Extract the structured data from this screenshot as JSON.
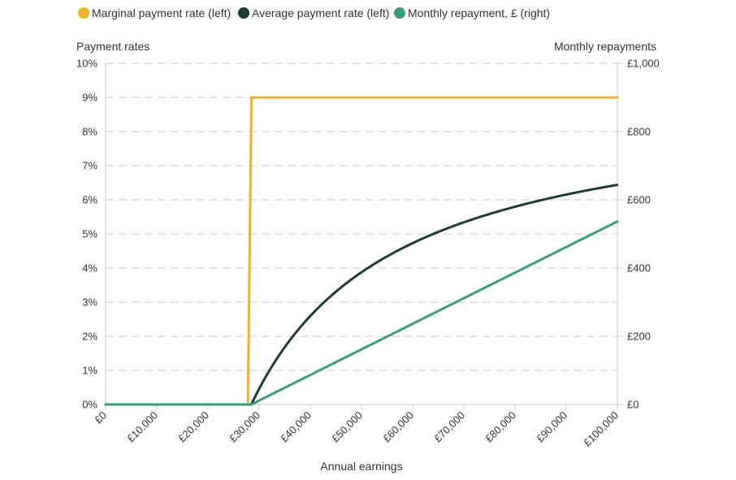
{
  "chart_data": {
    "type": "line",
    "xlabel": "Annual earnings",
    "ylabel_left": "Payment rates",
    "ylabel_right": "Monthly repayments",
    "xlim": [
      0,
      100000
    ],
    "ylim_left": [
      0,
      10
    ],
    "ylim_right": [
      0,
      1000
    ],
    "x_ticks": [
      0,
      10000,
      20000,
      30000,
      40000,
      50000,
      60000,
      70000,
      80000,
      90000,
      100000
    ],
    "x_tick_labels": [
      "£0",
      "£10,000",
      "£20,000",
      "£30,000",
      "£40,000",
      "£50,000",
      "£60,000",
      "£70,000",
      "£80,000",
      "£90,000",
      "£100,000"
    ],
    "left_ticks": [
      0,
      1,
      2,
      3,
      4,
      5,
      6,
      7,
      8,
      9,
      10
    ],
    "left_tick_labels": [
      "0%",
      "1%",
      "2%",
      "3%",
      "4%",
      "5%",
      "6%",
      "7%",
      "8%",
      "9%",
      "10%"
    ],
    "right_ticks": [
      0,
      200,
      400,
      600,
      800,
      1000
    ],
    "right_tick_labels": [
      "£0",
      "£200",
      "£400",
      "£600",
      "£800",
      "£1,000"
    ],
    "grid": true,
    "legend_position": "top-left",
    "series": [
      {
        "name": "Marginal payment rate (left)",
        "axis": "left",
        "color": "#f0b323",
        "points": [
          [
            0,
            0
          ],
          [
            27800,
            0
          ],
          [
            28500,
            9
          ],
          [
            100000,
            9
          ]
        ]
      },
      {
        "name": "Average payment rate (left)",
        "axis": "left",
        "color": "#1e3b36",
        "threshold": 28470,
        "rate": 9,
        "x": [
          0,
          28470,
          29000,
          30000,
          32000,
          35000,
          40000,
          45000,
          50000,
          55000,
          60000,
          65000,
          70000,
          75000,
          80000,
          85000,
          90000,
          95000,
          100000
        ],
        "values": [
          0,
          0,
          0.16,
          0.46,
          0.99,
          1.68,
          2.59,
          3.31,
          3.88,
          4.34,
          4.73,
          5.06,
          5.34,
          5.58,
          5.8,
          5.99,
          6.15,
          6.3,
          6.44
        ]
      },
      {
        "name": "Monthly repayment, £ (right)",
        "axis": "right",
        "color": "#3b9c77",
        "x": [
          0,
          28470,
          30000,
          40000,
          50000,
          60000,
          70000,
          80000,
          90000,
          100000
        ],
        "values": [
          0,
          0,
          11.5,
          86.5,
          161.5,
          236.5,
          311.5,
          386.5,
          461.5,
          536.5
        ]
      }
    ]
  }
}
